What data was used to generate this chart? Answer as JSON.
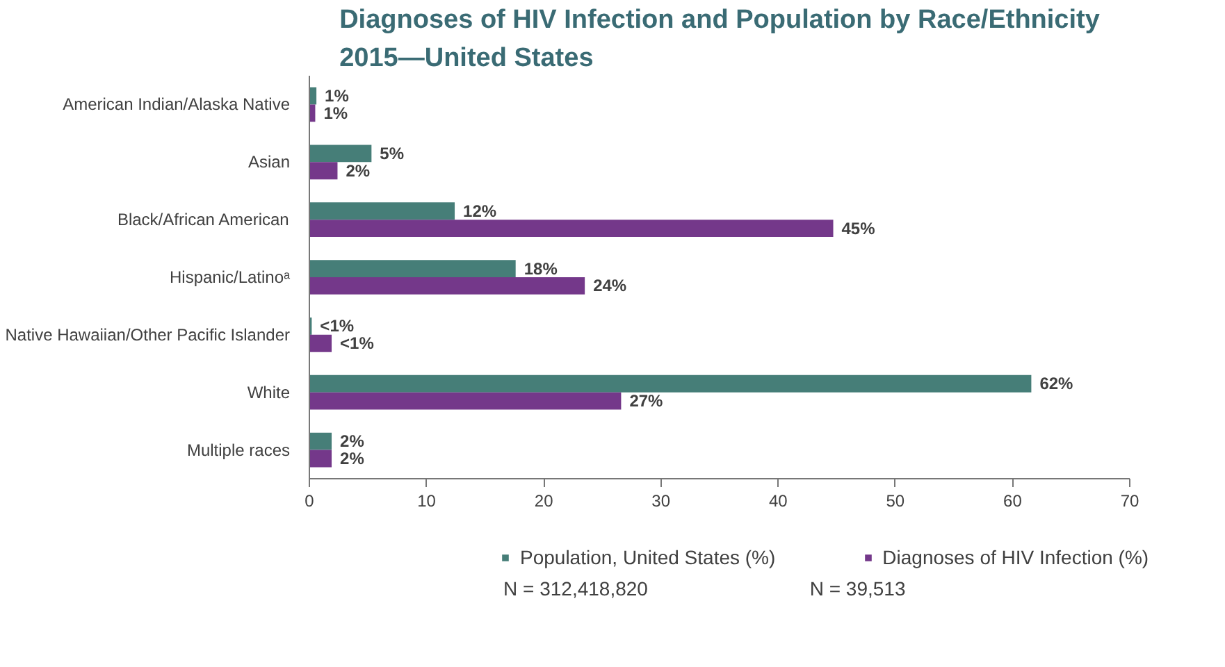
{
  "chart_data": {
    "type": "bar",
    "orientation": "horizontal",
    "title": "Diagnoses of HIV Infection and Population by Race/Ethnicity\n2015—United States",
    "categories": [
      "American Indian/Alaska Native",
      "Asian",
      "Black/African American",
      "Hispanic/Latinoᵃ",
      "Native Hawaiian/Other Pacific Islander",
      "White",
      "Multiple races"
    ],
    "series": [
      {
        "name": "Population, United States (%)",
        "color": "#467e78",
        "values": [
          0.6,
          5.3,
          12.4,
          17.6,
          0.2,
          61.6,
          1.9
        ],
        "value_labels": [
          "1%",
          "5%",
          "12%",
          "18%",
          "<1%",
          "62%",
          "2%"
        ]
      },
      {
        "name": "Diagnoses of HIV Infection (%)",
        "color": "#74388a",
        "values": [
          0.5,
          2.4,
          44.7,
          23.5,
          1.9,
          26.6,
          1.9
        ],
        "value_labels": [
          "1%",
          "2%",
          "45%",
          "24%",
          "<1%",
          "27%",
          "2%"
        ]
      }
    ],
    "xlim": [
      0,
      70
    ],
    "xticks": [
      0,
      10,
      20,
      30,
      40,
      50,
      60,
      70
    ],
    "grid": false,
    "legend": "bottom",
    "annotations": [
      "N = 312,418,820",
      "N = 39,513"
    ]
  }
}
